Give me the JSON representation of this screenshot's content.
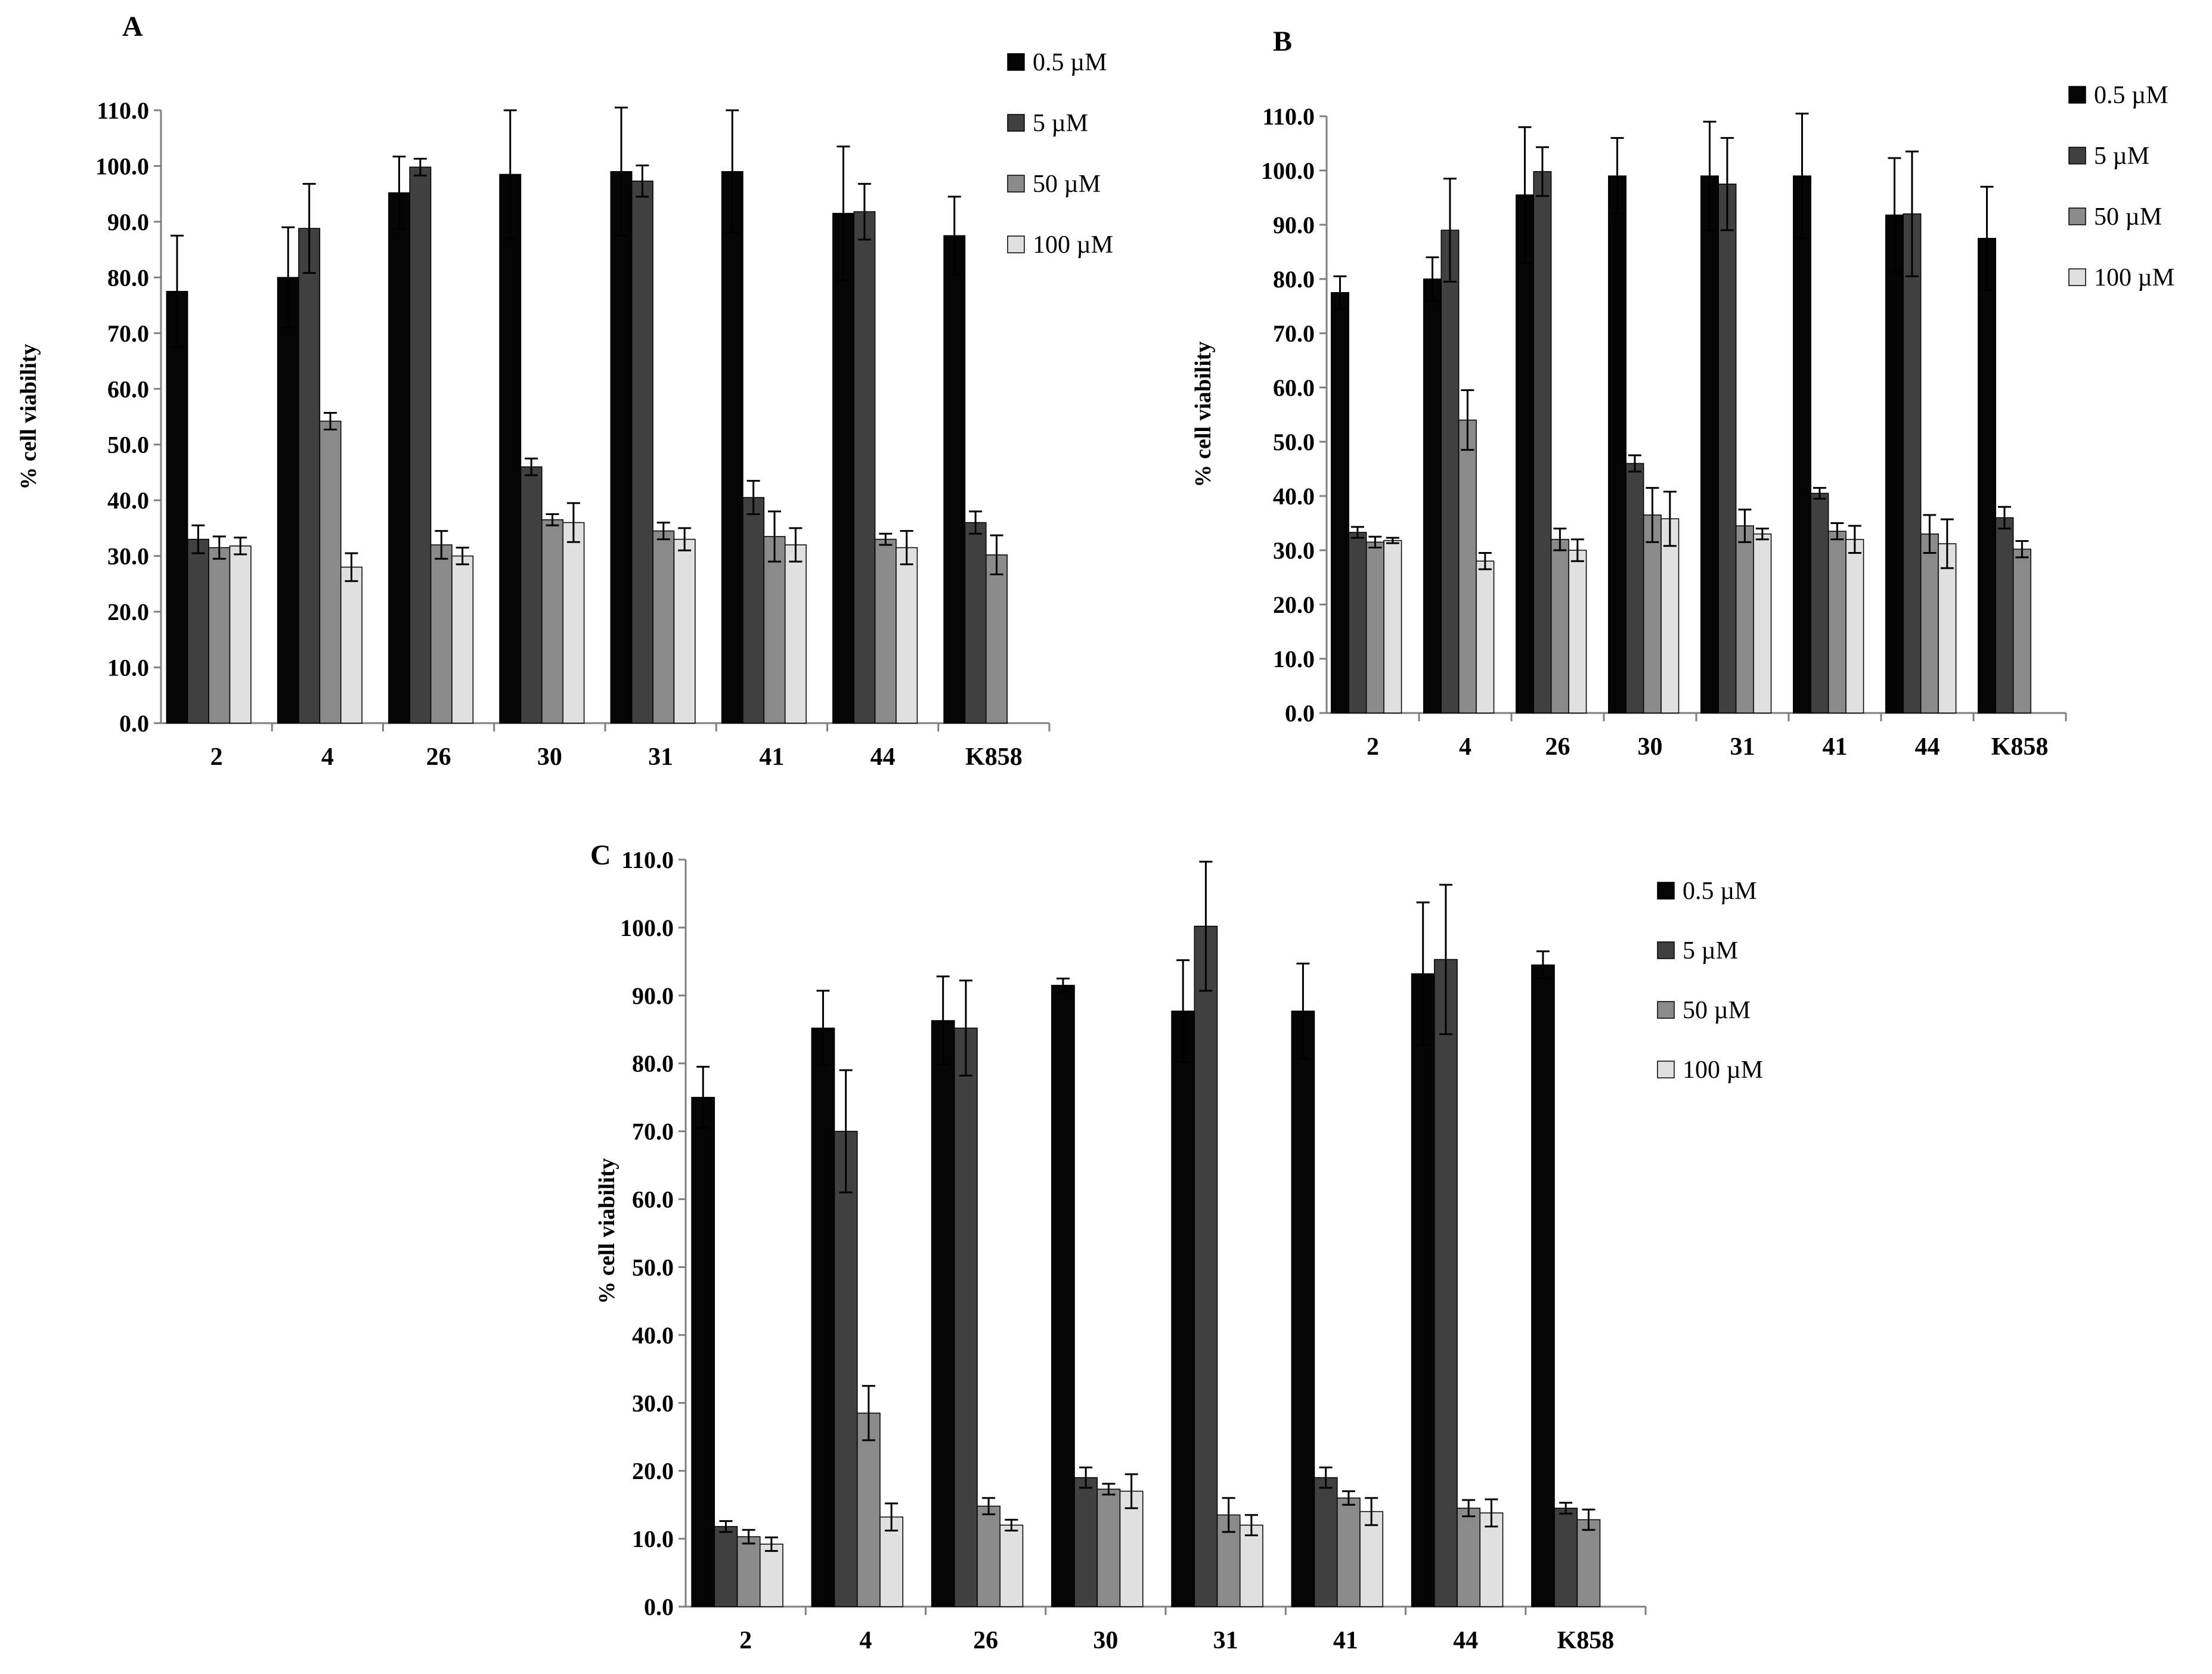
{
  "legend_units": "µM",
  "colors": {
    "s0": "#050505",
    "s1": "#404040",
    "s2": "#8a8a8a",
    "s3": "#e0e0e0",
    "axis": "#7f7f7f",
    "error": "#000000",
    "bar_stroke": "#000000"
  },
  "chart_data": [
    {
      "type": "bar",
      "panel": "A",
      "title": "",
      "xlabel": "",
      "ylabel": "% cell viability",
      "ylim": [
        0,
        110
      ],
      "ytick_step": 10,
      "categories": [
        "2",
        "4",
        "26",
        "30",
        "31",
        "41",
        "44",
        "K858"
      ],
      "series": [
        {
          "name": "0.5 µM",
          "values": [
            77.5,
            80.0,
            95.2,
            98.5,
            99.0,
            99.0,
            91.5,
            87.5
          ],
          "errors": [
            10.0,
            9.0,
            6.5,
            11.5,
            11.5,
            11.0,
            12.0,
            7.0
          ]
        },
        {
          "name": "5 µM",
          "values": [
            33.0,
            88.8,
            99.8,
            46.0,
            97.3,
            40.5,
            91.8,
            36.0
          ],
          "errors": [
            2.5,
            8.0,
            1.5,
            1.5,
            2.8,
            3.0,
            5.0,
            2.0
          ]
        },
        {
          "name": "50 µM",
          "values": [
            31.5,
            54.2,
            32.0,
            36.5,
            34.5,
            33.5,
            33.0,
            30.2
          ],
          "errors": [
            2.0,
            1.5,
            2.5,
            1.0,
            1.5,
            4.5,
            1.0,
            3.5
          ]
        },
        {
          "name": "100 µM",
          "values": [
            31.8,
            28.0,
            30.0,
            36.0,
            33.0,
            32.0,
            31.5,
            null
          ],
          "errors": [
            1.5,
            2.5,
            1.5,
            3.5,
            2.0,
            3.0,
            3.0,
            null
          ]
        }
      ]
    },
    {
      "type": "bar",
      "panel": "B",
      "title": "",
      "xlabel": "",
      "ylabel": "% cell viability",
      "ylim": [
        0,
        110
      ],
      "ytick_step": 10,
      "categories": [
        "2",
        "4",
        "26",
        "30",
        "31",
        "41",
        "44",
        "K858"
      ],
      "series": [
        {
          "name": "0.5 µM",
          "values": [
            77.5,
            80.0,
            95.5,
            99.0,
            99.0,
            99.0,
            91.8,
            87.5
          ],
          "errors": [
            3.0,
            4.0,
            12.5,
            7.0,
            10.0,
            11.5,
            10.5,
            9.5
          ]
        },
        {
          "name": "5 µM",
          "values": [
            33.3,
            89.0,
            99.8,
            46.0,
            97.5,
            40.5,
            92.0,
            36.0
          ],
          "errors": [
            1.0,
            9.5,
            4.5,
            1.5,
            8.5,
            1.0,
            11.5,
            2.0
          ]
        },
        {
          "name": "50 µM",
          "values": [
            31.5,
            54.0,
            32.0,
            36.5,
            34.5,
            33.5,
            33.0,
            30.2
          ],
          "errors": [
            1.0,
            5.5,
            2.0,
            5.0,
            3.0,
            1.5,
            3.5,
            1.5
          ]
        },
        {
          "name": "100 µM",
          "values": [
            31.8,
            28.0,
            30.0,
            35.8,
            33.0,
            32.0,
            31.2,
            null
          ],
          "errors": [
            0.5,
            1.5,
            2.0,
            5.0,
            1.0,
            2.5,
            4.5,
            null
          ]
        }
      ]
    },
    {
      "type": "bar",
      "panel": "C",
      "title": "",
      "xlabel": "",
      "ylabel": "% cell viability",
      "ylim": [
        0,
        110
      ],
      "ytick_step": 10,
      "categories": [
        "2",
        "4",
        "26",
        "30",
        "31",
        "41",
        "44",
        "K858"
      ],
      "series": [
        {
          "name": "0.5 µM",
          "values": [
            75.0,
            85.2,
            86.3,
            91.5,
            87.7,
            87.7,
            93.2,
            94.5
          ],
          "errors": [
            4.5,
            5.5,
            6.5,
            1.0,
            7.5,
            7.0,
            10.5,
            2.0
          ]
        },
        {
          "name": "5 µM",
          "values": [
            11.8,
            70.0,
            85.2,
            19.0,
            100.2,
            19.0,
            95.3,
            14.5
          ],
          "errors": [
            0.8,
            9.0,
            7.0,
            1.5,
            9.5,
            1.5,
            11.0,
            0.8
          ]
        },
        {
          "name": "50 µM",
          "values": [
            10.3,
            28.5,
            14.8,
            17.3,
            13.5,
            16.0,
            14.5,
            12.8
          ],
          "errors": [
            1.0,
            4.0,
            1.2,
            0.8,
            2.5,
            1.0,
            1.2,
            1.5
          ]
        },
        {
          "name": "100 µM",
          "values": [
            9.2,
            13.2,
            12.0,
            17.0,
            12.0,
            14.0,
            13.8,
            null
          ],
          "errors": [
            1.0,
            2.0,
            0.8,
            2.5,
            1.5,
            2.0,
            2.0,
            null
          ]
        }
      ]
    }
  ]
}
